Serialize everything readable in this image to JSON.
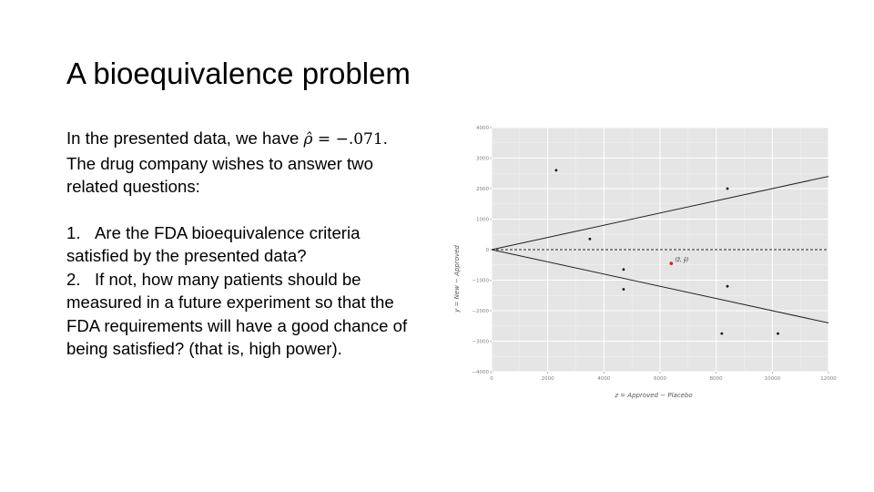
{
  "slide": {
    "title": "A bioequivalence problem",
    "intro_line1_prefix": "In the presented data, we have",
    "rho_symbol": "ρ̂",
    "rho_equals": "=",
    "rho_value": "−.071",
    "rho_suffix": ".",
    "intro_line2": "The drug company wishes to answer two",
    "intro_line3": "related questions:",
    "q1_line1": "1.   Are the FDA bioequivalence criteria",
    "q1_line2": "satisfied by the presented data?",
    "q2_line1": "2.   If not, how many patients should be",
    "q2_line2": "measured in a future experiment so that the",
    "q2_line3": "FDA requirements will have a good chance of",
    "q2_line4": "being satisfied? (that is, high power)."
  },
  "chart_data": {
    "type": "scatter",
    "title": "",
    "xlabel": "z = Approved − Placebo",
    "ylabel": "y = New − Approved",
    "xlim": [
      0,
      12000
    ],
    "ylim": [
      -4000,
      4000
    ],
    "x_ticks": [
      0,
      2000,
      4000,
      6000,
      8000,
      10000,
      12000
    ],
    "x_tick_labels": [
      "0",
      "2000",
      "4000",
      "6000",
      "8000",
      "10000",
      "12000"
    ],
    "y_ticks": [
      -4000,
      -3000,
      -2000,
      -1000,
      0,
      1000,
      2000,
      3000,
      4000
    ],
    "y_tick_labels": [
      "−4000",
      "−3000",
      "−2000",
      "−1000",
      "0",
      "1000",
      "2000",
      "3000",
      "4000"
    ],
    "grid": true,
    "background": "#e5e5e5",
    "points": [
      {
        "x": 2300,
        "y": 2600
      },
      {
        "x": 3500,
        "y": 350
      },
      {
        "x": 4700,
        "y": -650
      },
      {
        "x": 4700,
        "y": -1300
      },
      {
        "x": 8400,
        "y": 2000
      },
      {
        "x": 8400,
        "y": -1200
      },
      {
        "x": 8200,
        "y": -2750
      },
      {
        "x": 10200,
        "y": -2750
      }
    ],
    "mean_point": {
      "x": 6400,
      "y": -450,
      "label": "(z̄, ȳ)",
      "color": "#e41a1c"
    },
    "lines": [
      {
        "style": "solid",
        "x": [
          0,
          12000
        ],
        "y": [
          0,
          2400
        ]
      },
      {
        "style": "solid",
        "x": [
          0,
          12000
        ],
        "y": [
          0,
          -2400
        ]
      },
      {
        "style": "dashed",
        "x": [
          0,
          12000
        ],
        "y": [
          0,
          0
        ]
      }
    ],
    "colors": {
      "point": "#111111",
      "line": "#222222",
      "grid_major": "#ffffff",
      "axis_text": "#7f7f7f"
    }
  }
}
